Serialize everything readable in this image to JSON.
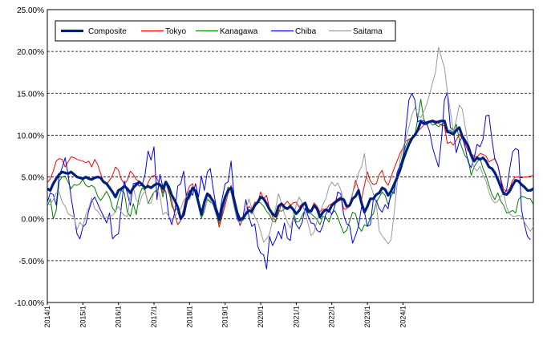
{
  "chart_data": {
    "type": "line",
    "x_start": "2014/1",
    "ylim": [
      -10,
      25
    ],
    "y_ticks": [
      "25.00%",
      "20.00%",
      "15.00%",
      "10.00%",
      "5.00%",
      "0.00%",
      "-5.00%",
      "-10.00%"
    ],
    "x_ticks": [
      "2014/1",
      "2015/1",
      "2016/1",
      "2017/1",
      "2018/1",
      "2019/1",
      "2020/1",
      "2021/1",
      "2022/1",
      "2023/1",
      "2024/1"
    ],
    "grid": "horizontal dashed",
    "legend": "top-left",
    "series": [
      {
        "name": "Composite",
        "color": "#002080",
        "values": [
          3.6,
          3.4,
          4.2,
          4.8,
          5.3,
          5.6,
          5.5,
          5.4,
          5.6,
          5.3,
          5.0,
          4.9,
          4.8,
          5.0,
          4.8,
          4.7,
          4.9,
          5.0,
          4.9,
          4.4,
          4.2,
          3.7,
          3.2,
          2.6,
          3.4,
          3.6,
          3.9,
          3.6,
          3.1,
          3.7,
          4.1,
          4.4,
          4.1,
          3.7,
          3.9,
          3.7,
          4.0,
          4.2,
          4.1,
          3.6,
          4.4,
          3.8,
          2.8,
          2.2,
          1.4,
          0.0,
          0.5,
          2.2,
          2.8,
          3.7,
          3.3,
          1.9,
          0.5,
          2.0,
          3.0,
          2.6,
          2.1,
          1.0,
          -0.1,
          1.4,
          2.6,
          3.4,
          3.7,
          2.3,
          0.8,
          -0.1,
          0.1,
          0.6,
          1.0,
          0.9,
          1.6,
          2.0,
          2.6,
          2.4,
          1.8,
          1.1,
          0.6,
          0.3,
          1.5,
          1.8,
          1.4,
          1.2,
          1.5,
          1.1,
          0.6,
          1.0,
          1.6,
          1.9,
          0.9,
          0.9,
          1.6,
          1.2,
          0.2,
          0.8,
          1.1,
          0.9,
          1.6,
          1.9,
          2.2,
          2.4,
          2.3,
          1.5,
          1.6,
          2.4,
          2.7,
          3.4,
          1.9,
          0.8,
          1.5,
          2.4,
          2.4,
          2.9,
          3.1,
          3.7,
          3.5,
          2.8,
          3.3,
          4.1,
          4.9,
          5.8,
          7.0,
          8.0,
          8.9,
          9.6,
          10.0,
          10.6,
          11.6,
          11.4,
          11.5,
          11.6,
          11.7,
          11.5,
          11.6,
          11.7,
          11.7,
          10.4,
          10.3,
          10.1,
          10.6,
          10.9,
          9.9,
          9.3,
          8.7,
          7.6,
          6.9,
          7.3,
          7.1,
          7.3,
          6.9,
          6.2,
          6.0,
          5.5,
          4.7,
          3.8,
          3.0,
          2.9,
          3.3,
          4.0,
          4.6,
          4.5,
          4.1,
          3.8,
          3.4,
          3.4,
          3.6
        ]
      },
      {
        "name": "Tokyo",
        "color": "#ff0000",
        "values": [
          4.3,
          4.8,
          5.7,
          6.9,
          7.2,
          7.1,
          6.2,
          6.8,
          7.4,
          7.3,
          7.1,
          7.0,
          6.9,
          6.7,
          6.9,
          6.2,
          7.1,
          6.5,
          5.4,
          4.4,
          4.1,
          4.6,
          5.2,
          6.2,
          5.8,
          4.7,
          4.2,
          4.6,
          5.7,
          5.3,
          4.7,
          4.5,
          4.1,
          3.5,
          4.3,
          5.0,
          5.2,
          4.8,
          4.1,
          3.1,
          4.3,
          3.1,
          2.2,
          0.5,
          -0.7,
          -0.2,
          1.2,
          3.0,
          3.9,
          4.2,
          3.0,
          2.1,
          0.8,
          1.7,
          3.0,
          2.9,
          2.1,
          0.7,
          -1.0,
          0.3,
          1.6,
          3.0,
          4.0,
          2.4,
          0.4,
          -0.8,
          0.0,
          0.6,
          1.5,
          1.1,
          2.0,
          1.9,
          3.2,
          2.4,
          2.8,
          1.2,
          0.2,
          -0.2,
          0.6,
          1.8,
          1.7,
          2.1,
          1.6,
          1.9,
          2.0,
          1.4,
          1.8,
          2.0,
          1.2,
          1.0,
          1.9,
          1.5,
          0.8,
          1.2,
          1.0,
          1.6,
          1.8,
          2.1,
          2.4,
          2.6,
          1.2,
          1.2,
          1.5,
          3.0,
          4.6,
          3.5,
          2.3,
          4.0,
          5.6,
          4.5,
          4.1,
          4.2,
          5.3,
          5.8,
          4.5,
          4.0,
          5.0,
          6.0,
          6.9,
          7.8,
          8.5,
          9.3,
          9.5,
          9.7,
          10.2,
          10.5,
          10.8,
          11.2,
          11.3,
          11.5,
          11.8,
          11.7,
          11.4,
          11.2,
          11.1,
          9.0,
          9.2,
          8.8,
          9.4,
          10.1,
          9.6,
          8.9,
          8.1,
          7.8,
          7.5,
          7.4,
          7.8,
          7.7,
          7.5,
          6.8,
          7.0,
          7.2,
          6.4,
          4.8,
          3.5,
          3.3,
          3.6,
          4.6,
          5.0,
          5.0,
          4.9,
          5.0,
          5.0,
          5.1,
          5.2
        ]
      },
      {
        "name": "Kanagawa",
        "color": "#008000",
        "values": [
          1.5,
          2.4,
          0.0,
          1.0,
          4.5,
          5.0,
          5.1,
          4.4,
          3.6,
          4.1,
          4.0,
          4.2,
          4.7,
          4.0,
          3.8,
          4.0,
          3.7,
          2.7,
          2.2,
          2.7,
          3.3,
          2.6,
          1.3,
          0.8,
          2.4,
          3.4,
          3.1,
          0.8,
          0.3,
          1.8,
          0.5,
          2.7,
          3.7,
          3.4,
          1.8,
          2.6,
          3.2,
          3.3,
          4.2,
          2.6,
          4.2,
          3.4,
          1.5,
          0.9,
          1.4,
          0.0,
          0.6,
          2.8,
          3.3,
          3.6,
          3.2,
          1.7,
          0.1,
          0.9,
          2.3,
          2.0,
          1.8,
          0.8,
          -0.6,
          0.6,
          2.6,
          3.8,
          3.4,
          1.7,
          0.2,
          -0.3,
          -0.2,
          0.4,
          1.0,
          0.6,
          1.4,
          2.0,
          1.9,
          1.5,
          0.9,
          0.5,
          -0.3,
          -0.4,
          1.0,
          0.9,
          1.2,
          1.2,
          1.7,
          0.9,
          -0.4,
          -0.3,
          0.4,
          1.1,
          0.7,
          0.6,
          0.3,
          -0.1,
          -0.7,
          0.3,
          0.2,
          -0.4,
          0.6,
          1.0,
          0.2,
          -0.8,
          -1.7,
          -1.4,
          -0.3,
          0.8,
          0.6,
          -0.9,
          -1.5,
          -0.7,
          -0.9,
          0.2,
          0.6,
          2.0,
          2.6,
          3.2,
          2.8,
          1.7,
          2.7,
          3.4,
          5.0,
          6.3,
          7.6,
          8.8,
          9.5,
          9.6,
          9.9,
          12.0,
          14.3,
          11.9,
          11.2,
          11.6,
          11.2,
          11.3,
          11.0,
          11.3,
          11.4,
          10.6,
          10.6,
          10.4,
          11.3,
          9.5,
          8.4,
          7.5,
          7.1,
          5.2,
          6.2,
          6.8,
          7.2,
          6.0,
          5.2,
          4.0,
          2.9,
          2.3,
          3.1,
          2.1,
          1.6,
          0.7,
          0.8,
          1.0,
          0.7,
          2.3,
          2.7,
          2.6,
          2.4,
          2.4,
          1.7
        ]
      },
      {
        "name": "Chiba",
        "color": "#0000ff",
        "values": [
          2.0,
          3.1,
          2.9,
          1.6,
          5.2,
          6.1,
          7.3,
          5.3,
          2.6,
          0.4,
          -1.8,
          -2.4,
          -1.0,
          -0.6,
          1.0,
          2.1,
          2.6,
          1.8,
          1.0,
          0.3,
          -0.5,
          0.7,
          -2.4,
          -2.0,
          -1.8,
          1.6,
          4.5,
          3.0,
          1.6,
          4.2,
          4.3,
          3.9,
          4.0,
          5.3,
          8.1,
          7.0,
          8.6,
          2.3,
          5.3,
          3.8,
          3.2,
          0.3,
          -0.7,
          0.8,
          3.9,
          4.2,
          5.7,
          2.3,
          3.4,
          2.8,
          4.2,
          2.6,
          5.1,
          3.4,
          5.6,
          6.0,
          3.5,
          1.4,
          0.4,
          2.4,
          4.2,
          4.4,
          6.9,
          2.7,
          0.2,
          -0.7,
          0.2,
          2.3,
          0.3,
          -0.9,
          -0.6,
          -3.3,
          -4.1,
          -4.3,
          -6.0,
          -2.1,
          -3.2,
          -2.5,
          -1.5,
          -2.4,
          -0.5,
          -2.3,
          -2.6,
          0.3,
          -0.7,
          -1.2,
          -0.4,
          1.3,
          0.3,
          -0.5,
          -0.6,
          -1.4,
          -1.6,
          -0.8,
          0.6,
          1.1,
          0.5,
          1.5,
          3.2,
          3.0,
          0.5,
          -0.6,
          -0.8,
          -2.9,
          -2.0,
          -0.9,
          1.4,
          0.8,
          -0.9,
          -0.7,
          2.4,
          2.2,
          1.2,
          0.8,
          1.7,
          1.2,
          3.3,
          3.0,
          5.5,
          6.5,
          6.8,
          10.8,
          14.2,
          15.0,
          14.2,
          11.6,
          11.8,
          11.7,
          11.4,
          10.4,
          8.5,
          7.3,
          6.2,
          9.6,
          14.2,
          15.1,
          10.9,
          10.6,
          7.9,
          9.2,
          9.8,
          8.5,
          6.8,
          6.1,
          7.3,
          8.9,
          8.6,
          9.5,
          12.3,
          12.4,
          9.5,
          7.1,
          6.4,
          4.6,
          2.9,
          3.5,
          5.9,
          8.0,
          8.4,
          8.2,
          1.1,
          -0.7,
          -2.1,
          -2.5
        ]
      },
      {
        "name": "Saitama",
        "color": "#999999",
        "values": [
          1.8,
          1.7,
          2.3,
          3.1,
          3.2,
          2.0,
          1.5,
          0.6,
          0.4,
          0.2,
          -1.3,
          -0.4,
          -0.9,
          0.5,
          1.3,
          2.5,
          1.2,
          0.9,
          0.4,
          0.1,
          0.2,
          0.3,
          0.4,
          0.9,
          1.5,
          0.8,
          0.4,
          0.3,
          2.8,
          3.7,
          2.3,
          1.7,
          2.8,
          3.3,
          1.8,
          1.9,
          3.2,
          3.6,
          2.8,
          0.5,
          0.8,
          0.3,
          -0.2,
          0.2,
          0.8,
          1.2,
          2.2,
          2.7,
          2.3,
          3.6,
          3.5,
          1.8,
          1.0,
          1.0,
          2.4,
          2.2,
          1.6,
          0.4,
          -0.2,
          0.8,
          1.9,
          3.1,
          3.2,
          1.4,
          -0.1,
          -0.6,
          0.0,
          1.0,
          2.4,
          1.3,
          0.2,
          -0.4,
          -1.5,
          -2.8,
          -2.4,
          -1.8,
          -0.2,
          1.2,
          3.0,
          1.9,
          0.6,
          -0.4,
          -1.1,
          0.2,
          1.7,
          2.6,
          1.9,
          0.7,
          -0.6,
          -2.0,
          -1.6,
          -0.2,
          0.8,
          1.7,
          2.4,
          3.8,
          4.4,
          3.9,
          4.3,
          3.5,
          2.2,
          1.2,
          1.8,
          3.1,
          4.0,
          5.5,
          6.2,
          7.8,
          4.6,
          4.1,
          3.0,
          1.8,
          -1.5,
          -2.0,
          -2.5,
          -3.0,
          -2.5,
          0.6,
          4.0,
          7.0,
          8.5,
          9.6,
          11.0,
          12.4,
          13.3,
          12.4,
          12.1,
          12.8,
          13.7,
          14.9,
          16.3,
          17.6,
          20.5,
          19.2,
          18.1,
          15.2,
          12.9,
          10.4,
          11.8,
          13.6,
          13.1,
          11.0,
          9.0,
          7.3,
          6.1,
          5.7,
          6.3,
          5.2,
          4.5,
          3.2,
          2.3,
          1.9,
          2.1,
          2.7,
          3.0,
          1.4,
          0.6,
          0.3,
          0.3,
          0.4,
          0.3,
          -0.4,
          -1.0,
          -1.5,
          -0.9
        ]
      }
    ]
  }
}
